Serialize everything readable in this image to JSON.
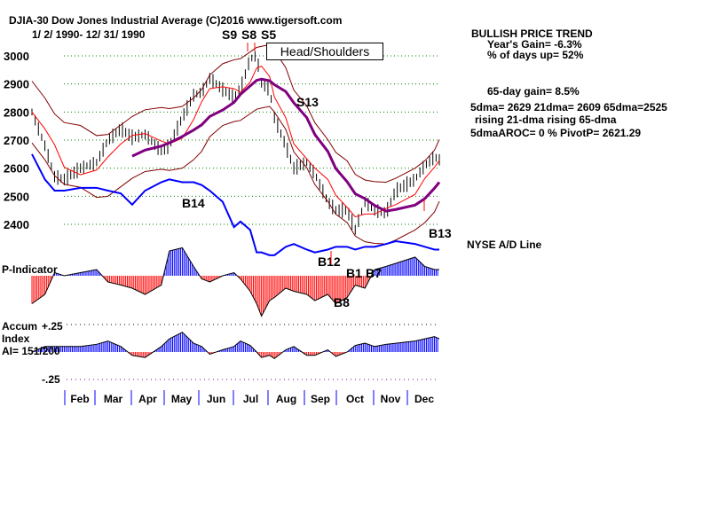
{
  "header": {
    "title": "DJIA-30  Dow Jones Industrial Average   (C)2016 www.tigersoft.com",
    "date_range": "1/ 2/ 1990- 12/ 31/ 1990"
  },
  "stats": {
    "trend": "BULLISH PRICE TREND",
    "years_gain": "Year's Gain= -6.3%",
    "days_up": "% of days up= 52%",
    "gain65": "65-day gain= 8.5%",
    "dma": "5dma= 2629 21dma= 2609 65dma=2525",
    "rising": "rising 21-dma  rising 65-dma",
    "aroc": "5dmaAROC= 0 %  PivotP= 2621.29"
  },
  "labels": {
    "ad_line": "NYSE A/D Line",
    "p_indicator": "P-Indicator",
    "accum1": "Accum",
    "accum2": "Index",
    "ai": "AI= 151/200",
    "plus25": "+.25",
    "minus25": "-.25",
    "head_shoulders": "Head/Shoulders"
  },
  "chart_data": {
    "type": "line",
    "title": "DJIA-30 Dow Jones Industrial Average",
    "ylim": [
      2350,
      3050
    ],
    "yticks": [
      3000,
      2900,
      2800,
      2700,
      2600,
      2500,
      2400
    ],
    "months": [
      "Feb",
      "Mar",
      "Apr",
      "May",
      "Jun",
      "Jul",
      "Aug",
      "Sep",
      "Oct",
      "Nov",
      "Dec"
    ],
    "x": [
      0,
      8,
      14,
      20,
      30,
      40,
      47,
      55,
      62,
      70,
      80,
      85,
      93,
      100,
      105,
      110,
      118,
      125,
      129,
      135,
      139,
      142,
      147,
      150,
      157,
      162,
      170,
      175,
      183,
      188,
      195,
      200,
      206,
      212,
      219,
      225,
      237,
      243,
      249,
      252
    ],
    "price": [
      2800,
      2680,
      2570,
      2560,
      2600,
      2620,
      2700,
      2740,
      2710,
      2720,
      2660,
      2680,
      2780,
      2860,
      2870,
      2920,
      2880,
      2850,
      2880,
      2990,
      3000,
      2900,
      2880,
      2780,
      2680,
      2600,
      2620,
      2580,
      2480,
      2450,
      2450,
      2380,
      2480,
      2450,
      2440,
      2520,
      2560,
      2610,
      2640,
      2630
    ],
    "ad_line": [
      2650,
      2560,
      2520,
      2520,
      2530,
      2530,
      2520,
      2510,
      2470,
      2520,
      2550,
      2560,
      2550,
      2550,
      2540,
      2520,
      2480,
      2390,
      2410,
      2380,
      2300,
      2300,
      2290,
      2290,
      2320,
      2330,
      2310,
      2300,
      2310,
      2320,
      2320,
      2310,
      2320,
      2320,
      2330,
      2340,
      2330,
      2320,
      2310,
      2310
    ],
    "p_indicator": [
      -0.9,
      -0.6,
      0.1,
      0.0,
      0.1,
      0.2,
      -0.2,
      -0.3,
      -0.4,
      -0.6,
      -0.3,
      0.8,
      0.9,
      0.3,
      -0.1,
      -0.2,
      0.0,
      0.1,
      -0.1,
      -0.5,
      -0.9,
      -1.3,
      -0.8,
      -0.7,
      -0.4,
      -0.5,
      -0.6,
      -0.8,
      -0.6,
      -0.9,
      -0.7,
      -0.3,
      -0.4,
      0.2,
      0.3,
      0.4,
      0.6,
      0.3,
      0.2,
      0.2
    ],
    "accum_index": [
      0.0,
      0.05,
      0.05,
      0.05,
      0.05,
      0.07,
      0.1,
      0.05,
      -0.03,
      -0.05,
      0.05,
      0.12,
      0.18,
      0.08,
      0.05,
      -0.02,
      0.02,
      0.05,
      0.1,
      0.06,
      0.0,
      -0.05,
      -0.03,
      -0.06,
      0.02,
      0.05,
      -0.03,
      -0.03,
      0.02,
      -0.04,
      0.0,
      0.06,
      0.08,
      0.05,
      0.07,
      0.08,
      0.1,
      0.12,
      0.14,
      0.12
    ],
    "signals": [
      "S8",
      "S9",
      "S5",
      "S13",
      "B14",
      "B13",
      "B12",
      "B8",
      "B1",
      "B7"
    ]
  }
}
